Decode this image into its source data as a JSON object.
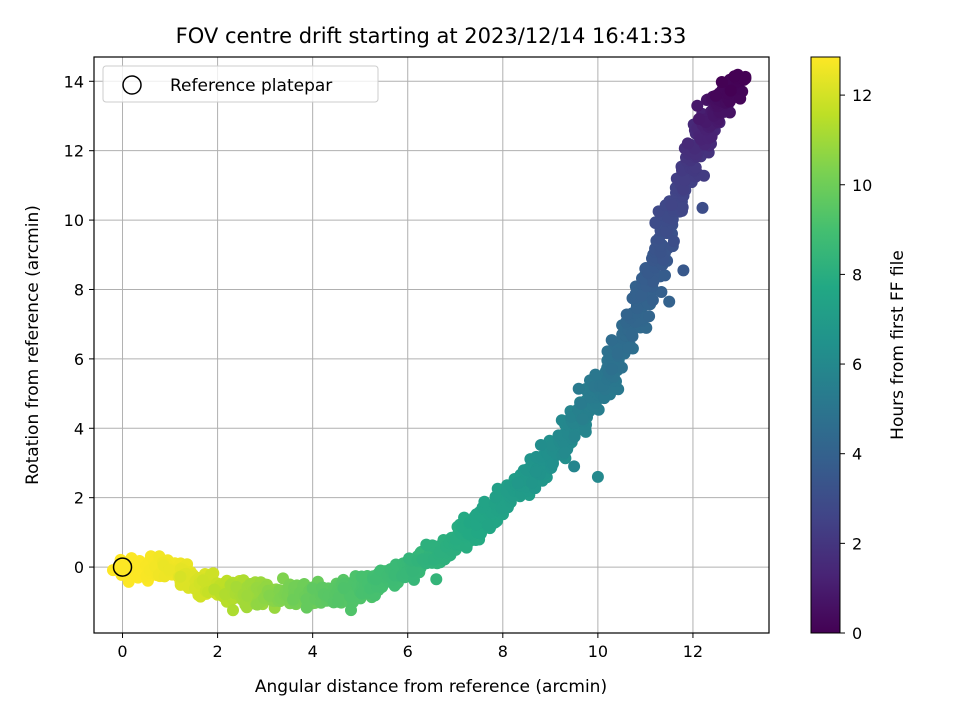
{
  "chart_data": {
    "type": "scatter",
    "title": "FOV centre drift starting at 2023/12/14 16:41:33",
    "xlabel": "Angular distance from reference (arcmin)",
    "ylabel": "Rotation from reference (arcmin)",
    "xlim": [
      -0.6,
      13.6
    ],
    "ylim": [
      -1.9,
      14.7
    ],
    "xticks": [
      0,
      2,
      4,
      6,
      8,
      10,
      12
    ],
    "yticks": [
      0,
      2,
      4,
      6,
      8,
      10,
      12,
      14
    ],
    "grid": true,
    "legend": {
      "placement": "top-left",
      "entries": [
        {
          "label": "Reference platepar",
          "marker": "open-circle"
        }
      ]
    },
    "reference_point": {
      "x": 0,
      "y": 0
    },
    "colorbar": {
      "label": "Hours from first FF file",
      "colormap": "viridis",
      "range": [
        0,
        12.85
      ],
      "ticks": [
        0,
        2,
        4,
        6,
        8,
        10,
        12
      ]
    },
    "series": [
      {
        "trend": [
          {
            "hours": 12.85,
            "x": 0.0,
            "y": 0.0
          },
          {
            "hours": 12.8,
            "x": 0.5,
            "y": -0.1
          },
          {
            "hours": 12.6,
            "x": 1.0,
            "y": 0.0
          },
          {
            "hours": 12.2,
            "x": 1.5,
            "y": -0.4
          },
          {
            "hours": 11.8,
            "x": 2.0,
            "y": -0.6
          },
          {
            "hours": 11.2,
            "x": 2.5,
            "y": -0.75
          },
          {
            "hours": 10.8,
            "x": 3.0,
            "y": -0.8
          },
          {
            "hours": 10.3,
            "x": 3.5,
            "y": -0.82
          },
          {
            "hours": 9.9,
            "x": 4.0,
            "y": -0.8
          },
          {
            "hours": 9.5,
            "x": 4.5,
            "y": -0.75
          },
          {
            "hours": 9.2,
            "x": 5.0,
            "y": -0.6
          },
          {
            "hours": 8.9,
            "x": 5.5,
            "y": -0.35
          },
          {
            "hours": 8.6,
            "x": 6.0,
            "y": -0.05
          },
          {
            "hours": 8.3,
            "x": 6.5,
            "y": 0.3
          },
          {
            "hours": 8.0,
            "x": 7.0,
            "y": 0.75
          },
          {
            "hours": 7.7,
            "x": 7.5,
            "y": 1.25
          },
          {
            "hours": 7.3,
            "x": 8.0,
            "y": 1.85
          },
          {
            "hours": 6.9,
            "x": 8.5,
            "y": 2.5
          },
          {
            "hours": 6.4,
            "x": 9.0,
            "y": 3.2
          },
          {
            "hours": 5.9,
            "x": 9.5,
            "y": 4.0
          },
          {
            "hours": 5.3,
            "x": 10.0,
            "y": 5.0
          },
          {
            "hours": 4.8,
            "x": 10.4,
            "y": 6.0
          },
          {
            "hours": 4.2,
            "x": 10.8,
            "y": 7.3
          },
          {
            "hours": 3.6,
            "x": 11.2,
            "y": 8.7
          },
          {
            "hours": 2.8,
            "x": 11.6,
            "y": 10.3
          },
          {
            "hours": 2.0,
            "x": 12.0,
            "y": 11.8
          },
          {
            "hours": 1.2,
            "x": 12.3,
            "y": 12.7
          },
          {
            "hours": 0.5,
            "x": 12.6,
            "y": 13.5
          },
          {
            "hours": 0.0,
            "x": 12.9,
            "y": 14.0
          }
        ],
        "outliers": [
          {
            "hours": 3.0,
            "x": 12.2,
            "y": 10.35
          },
          {
            "hours": 3.5,
            "x": 11.8,
            "y": 8.55
          },
          {
            "hours": 4.0,
            "x": 11.5,
            "y": 7.65
          },
          {
            "hours": 6.0,
            "x": 10.0,
            "y": 2.6
          },
          {
            "hours": 8.4,
            "x": 6.6,
            "y": -0.35
          },
          {
            "hours": 5.8,
            "x": 9.5,
            "y": 2.9
          }
        ]
      }
    ]
  }
}
